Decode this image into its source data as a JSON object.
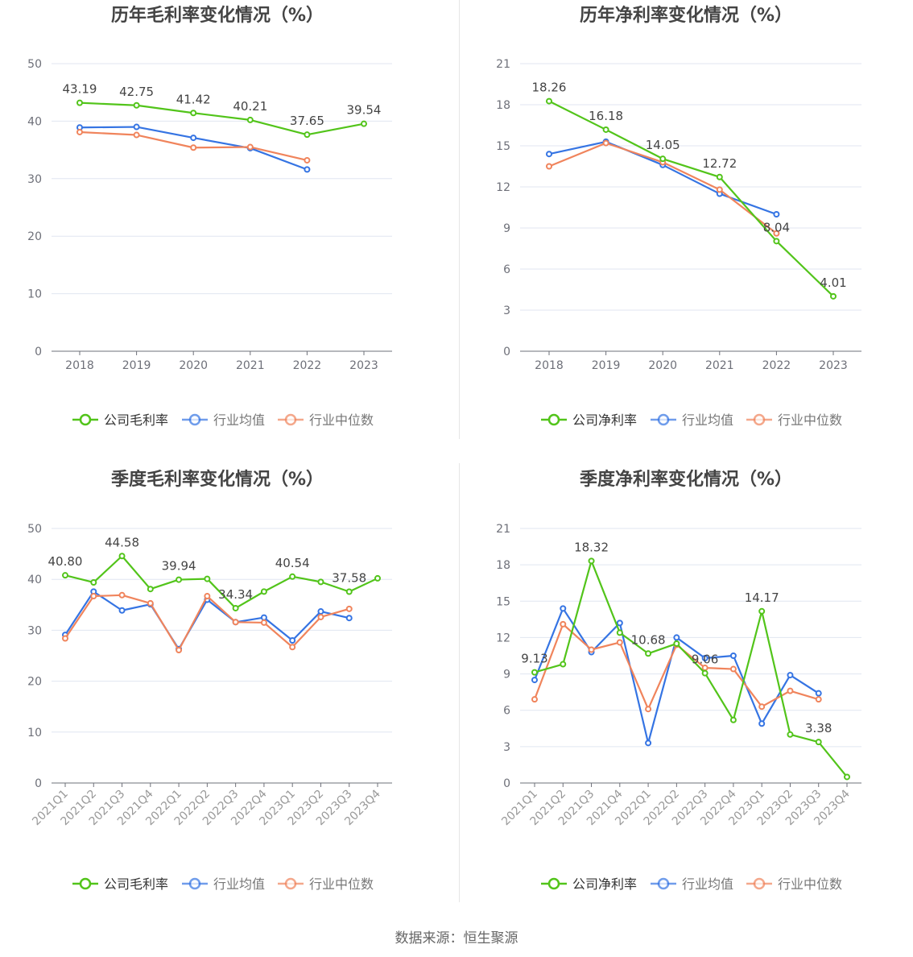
{
  "colors": {
    "company": "#52c41a",
    "avg": "#3574e3",
    "median": "#f0845c",
    "grid": "#e0e6f1",
    "axis": "#6e7079",
    "label": "#444444"
  },
  "source": "数据来源：恒生聚源",
  "chart_data": [
    {
      "type": "line",
      "title": "历年毛利率变化情况（%）",
      "categories": [
        "2018",
        "2019",
        "2020",
        "2021",
        "2022",
        "2023"
      ],
      "ylim": [
        0,
        50
      ],
      "yticks": [
        0,
        10,
        20,
        30,
        40,
        50
      ],
      "legend": [
        "公司毛利率",
        "行业均值",
        "行业中位数"
      ],
      "series": [
        {
          "name": "公司毛利率",
          "role": "company",
          "values": [
            43.19,
            42.75,
            41.42,
            40.21,
            37.65,
            39.54
          ],
          "labels": [
            "43.19",
            "42.75",
            "41.42",
            "40.21",
            "37.65",
            "39.54"
          ]
        },
        {
          "name": "行业均值",
          "role": "avg",
          "values": [
            38.9,
            39.0,
            37.1,
            35.3,
            31.6,
            null
          ]
        },
        {
          "name": "行业中位数",
          "role": "median",
          "values": [
            38.1,
            37.6,
            35.4,
            35.5,
            33.2,
            null
          ]
        }
      ]
    },
    {
      "type": "line",
      "title": "历年净利率变化情况（%）",
      "categories": [
        "2018",
        "2019",
        "2020",
        "2021",
        "2022",
        "2023"
      ],
      "ylim": [
        0,
        21
      ],
      "yticks": [
        0,
        3,
        6,
        9,
        12,
        15,
        18,
        21
      ],
      "legend": [
        "公司净利率",
        "行业均值",
        "行业中位数"
      ],
      "series": [
        {
          "name": "公司净利率",
          "role": "company",
          "values": [
            18.26,
            16.18,
            14.05,
            12.72,
            8.04,
            4.01
          ],
          "labels": [
            "18.26",
            "16.18",
            "14.05",
            "12.72",
            "8.04",
            "4.01"
          ]
        },
        {
          "name": "行业均值",
          "role": "avg",
          "values": [
            14.4,
            15.3,
            13.6,
            11.5,
            10.0,
            null
          ]
        },
        {
          "name": "行业中位数",
          "role": "median",
          "values": [
            13.5,
            15.2,
            13.8,
            11.8,
            8.6,
            null
          ]
        }
      ]
    },
    {
      "type": "line",
      "title": "季度毛利率变化情况（%）",
      "categories": [
        "2021Q1",
        "2021Q2",
        "2021Q3",
        "2021Q4",
        "2022Q1",
        "2022Q2",
        "2022Q3",
        "2022Q4",
        "2023Q1",
        "2023Q2",
        "2023Q3",
        "2023Q4"
      ],
      "ylim": [
        0,
        50
      ],
      "yticks": [
        0,
        10,
        20,
        30,
        40,
        50
      ],
      "legend": [
        "公司毛利率",
        "行业均值",
        "行业中位数"
      ],
      "series": [
        {
          "name": "公司毛利率",
          "role": "company",
          "values": [
            40.8,
            39.4,
            44.58,
            38.1,
            39.94,
            40.1,
            34.34,
            37.6,
            40.54,
            39.5,
            37.58,
            40.2
          ],
          "labels": [
            "40.80",
            "",
            "44.58",
            "",
            "39.94",
            "",
            "34.34",
            "",
            "40.54",
            "",
            "37.58",
            ""
          ]
        },
        {
          "name": "行业均值",
          "role": "avg",
          "values": [
            29.1,
            37.6,
            33.9,
            35.1,
            26.3,
            36.0,
            31.6,
            32.5,
            28.0,
            33.7,
            32.4,
            null
          ]
        },
        {
          "name": "行业中位数",
          "role": "median",
          "values": [
            28.4,
            36.7,
            36.9,
            35.3,
            26.1,
            36.7,
            31.6,
            31.5,
            26.7,
            32.6,
            34.2,
            null
          ]
        }
      ]
    },
    {
      "type": "line",
      "title": "季度净利率变化情况（%）",
      "categories": [
        "2021Q1",
        "2021Q2",
        "2021Q3",
        "2021Q4",
        "2022Q1",
        "2022Q2",
        "2022Q3",
        "2022Q4",
        "2023Q1",
        "2023Q2",
        "2023Q3",
        "2023Q4"
      ],
      "ylim": [
        0,
        21
      ],
      "yticks": [
        0,
        3,
        6,
        9,
        12,
        15,
        18,
        21
      ],
      "legend": [
        "公司净利率",
        "行业均值",
        "行业中位数"
      ],
      "series": [
        {
          "name": "公司净利率",
          "role": "company",
          "values": [
            9.13,
            9.8,
            18.32,
            12.4,
            10.68,
            11.5,
            9.06,
            5.2,
            14.17,
            4.0,
            3.38,
            0.5
          ],
          "labels": [
            "9.13",
            "",
            "18.32",
            "",
            "10.68",
            "",
            "9.06",
            "",
            "14.17",
            "",
            "3.38",
            ""
          ]
        },
        {
          "name": "行业均值",
          "role": "avg",
          "values": [
            8.5,
            14.4,
            10.8,
            13.2,
            3.3,
            12.0,
            10.3,
            10.5,
            4.9,
            8.9,
            7.4,
            null
          ]
        },
        {
          "name": "行业中位数",
          "role": "median",
          "values": [
            6.9,
            13.1,
            11.0,
            11.6,
            6.1,
            11.4,
            9.5,
            9.4,
            6.3,
            7.6,
            6.9,
            null
          ]
        }
      ]
    }
  ]
}
